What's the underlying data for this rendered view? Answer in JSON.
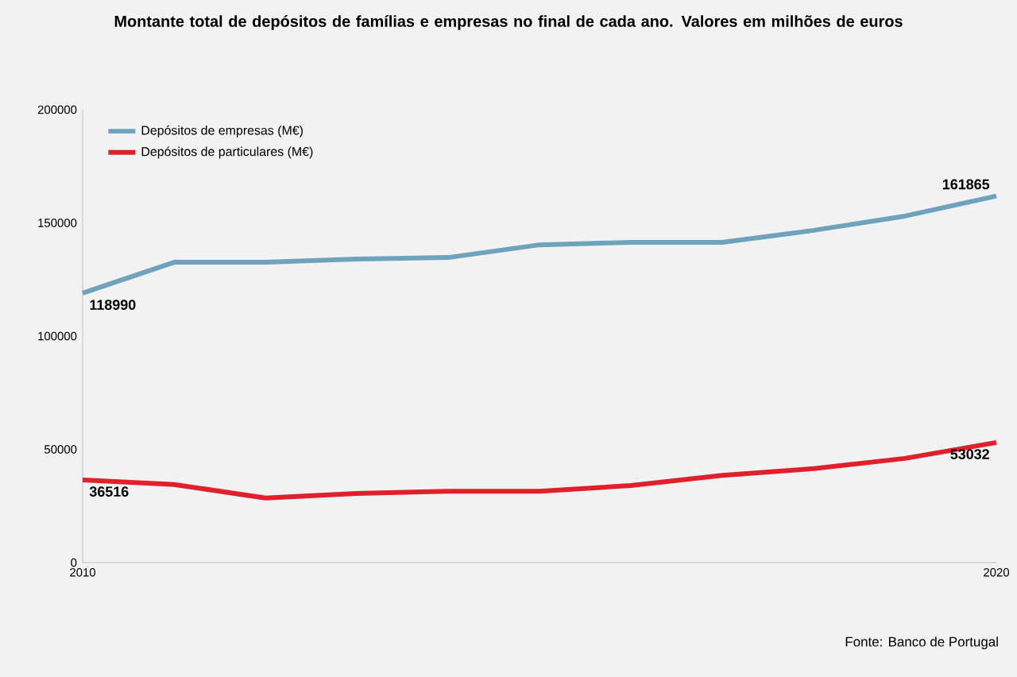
{
  "chart_data": {
    "type": "line",
    "title": "Montante total de depósitos de famílias e empresas no final de cada ano. Valores em milhões de euros",
    "x": [
      2010,
      2011,
      2012,
      2013,
      2014,
      2015,
      2016,
      2017,
      2018,
      2019,
      2020
    ],
    "series": [
      {
        "name": "Depósitos de empresas (M€)",
        "color": "#6fa3bd",
        "values": [
          118990,
          132600,
          132600,
          134000,
          134700,
          140300,
          141400,
          141400,
          146700,
          153000,
          161865
        ],
        "value_labels": [
          "118990",
          null,
          null,
          null,
          null,
          null,
          null,
          null,
          null,
          null,
          "161865"
        ]
      },
      {
        "name": "Depósitos de particulares (M€)",
        "color": "#e0202a",
        "values": [
          36516,
          34500,
          28500,
          30500,
          31500,
          31500,
          34000,
          38500,
          41500,
          46000,
          53032
        ],
        "value_labels": [
          "36516",
          null,
          null,
          null,
          null,
          null,
          null,
          null,
          null,
          null,
          "53032"
        ]
      }
    ],
    "xlim": [
      2010,
      2020
    ],
    "xticks": [
      2010,
      2020
    ],
    "ylim": [
      0,
      200000
    ],
    "yticks": [
      0,
      50000,
      100000,
      150000,
      200000
    ],
    "legend": "top left",
    "grid": false,
    "marker": "none",
    "line_style": "solid",
    "annotations": [
      "Fonte: Banco de Portugal"
    ]
  }
}
